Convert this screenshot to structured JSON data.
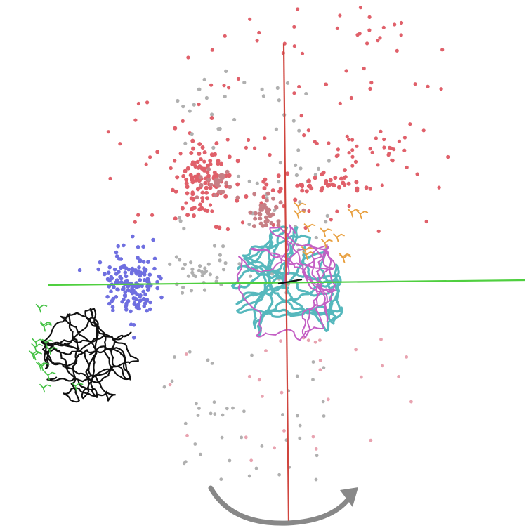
{
  "scene": {
    "subject": "molecular-dynamics-visualization",
    "colors": {
      "background": "#ffffff",
      "vertical_axis": "#d0453e",
      "horizontal_axis": "#4fcf3f",
      "dot_red": "#e0606a",
      "dot_grey": "#b0b0b0",
      "dot_pink": "#e8a3b0",
      "dot_blue": "#6f6fe0",
      "dot_rose": "#c77f85",
      "protein_cyan": "#56b8bd",
      "protein_magenta": "#c45fc4",
      "ligand_orange": "#e8a040",
      "protein_black": "#111111",
      "ligand_green": "#44c144",
      "rotation_arrow": "#888888"
    },
    "icons": {
      "rotation": "curved-rotation-arrow"
    }
  }
}
